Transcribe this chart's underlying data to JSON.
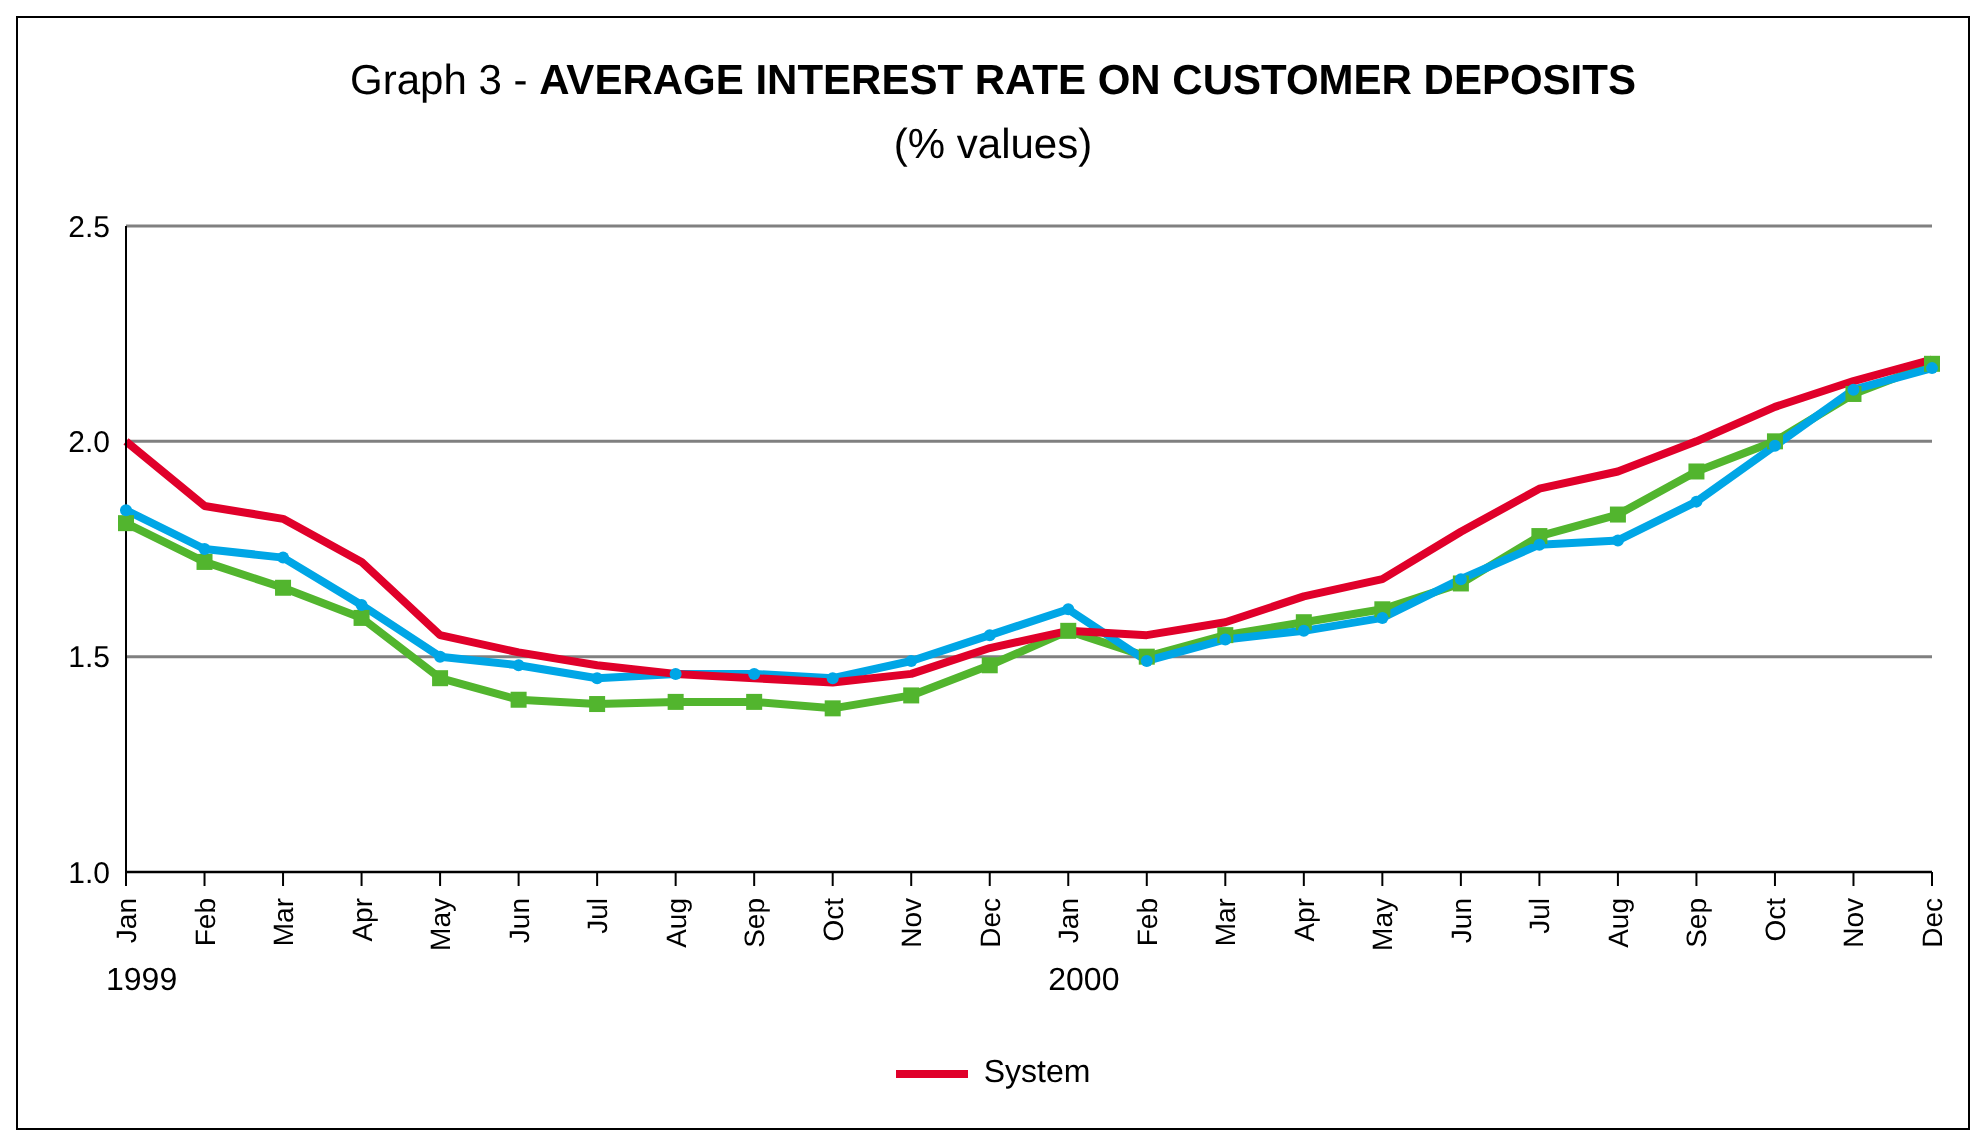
{
  "chart_data": {
    "type": "line",
    "title": "Graph 3 - AVERAGE INTEREST RATE ON CUSTOMER DEPOSITS",
    "subtitle": "(% values)",
    "categories": [
      "Jan",
      "Feb",
      "Mar",
      "Apr",
      "May",
      "Jun",
      "Jul",
      "Aug",
      "Sep",
      "Oct",
      "Nov",
      "Dec",
      "Jan",
      "Feb",
      "Mar",
      "Apr",
      "May",
      "Jun",
      "Jul",
      "Aug",
      "Sep",
      "Oct",
      "Nov",
      "Dec"
    ],
    "series": [
      {
        "color": "#52b52e",
        "marker": "square",
        "values": [
          1.81,
          1.72,
          1.66,
          1.59,
          1.45,
          1.4,
          1.39,
          1.395,
          1.395,
          1.38,
          1.41,
          1.48,
          1.56,
          1.5,
          1.55,
          1.58,
          1.61,
          1.67,
          1.78,
          1.83,
          1.93,
          2.0,
          2.11,
          2.18
        ]
      },
      {
        "color": "#00a6e6",
        "marker": "circle",
        "values": [
          1.84,
          1.75,
          1.73,
          1.62,
          1.5,
          1.48,
          1.45,
          1.46,
          1.46,
          1.45,
          1.49,
          1.55,
          1.61,
          1.49,
          1.54,
          1.56,
          1.59,
          1.68,
          1.76,
          1.77,
          1.86,
          1.99,
          2.12,
          2.17
        ]
      },
      {
        "name": "System",
        "color": "#e0002a",
        "marker": "none",
        "values": [
          2.0,
          1.85,
          1.82,
          1.72,
          1.55,
          1.51,
          1.48,
          1.46,
          1.45,
          1.44,
          1.46,
          1.52,
          1.56,
          1.55,
          1.58,
          1.64,
          1.68,
          1.79,
          1.89,
          1.93,
          2.0,
          2.08,
          2.14,
          2.19
        ]
      }
    ],
    "annotations": [
      "1999",
      "2000"
    ],
    "ylim": [
      1.0,
      2.5
    ],
    "yticks": [
      {
        "value": 1,
        "label": "1.0"
      },
      1.5,
      {
        "value": 2,
        "label": "2.0"
      },
      2.5
    ],
    "grid": "y",
    "legend": "bottom"
  }
}
